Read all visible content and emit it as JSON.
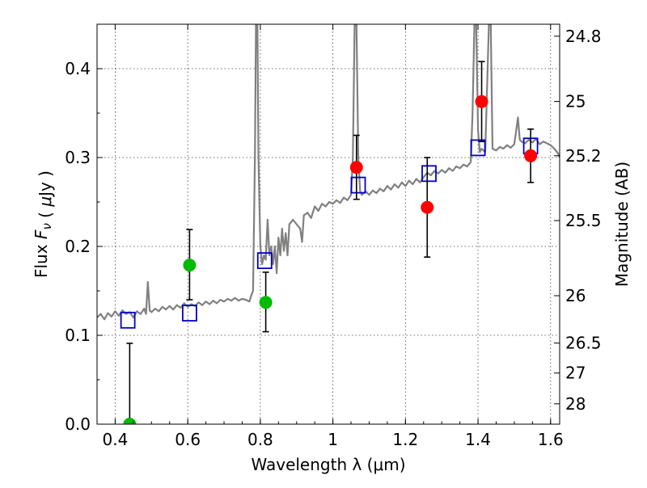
{
  "chart_data": {
    "type": "scatter",
    "xlabel": "Wavelength  λ (μm)",
    "ylabel": "Flux  F_ν  ( μJy )",
    "ylabel_right": "Magnitude (AB)",
    "xlim": [
      0.35,
      1.625
    ],
    "ylim": [
      0.0,
      0.45
    ],
    "grid": true,
    "x_ticks": [
      {
        "value": 0.4,
        "label": "0.4"
      },
      {
        "value": 0.6,
        "label": "0.6"
      },
      {
        "value": 0.8,
        "label": "0.8"
      },
      {
        "value": 1.0,
        "label": "1"
      },
      {
        "value": 1.2,
        "label": "1.2"
      },
      {
        "value": 1.4,
        "label": "1.4"
      },
      {
        "value": 1.6,
        "label": "1.6"
      }
    ],
    "y_ticks": [
      {
        "value": 0.0,
        "label": "0.0"
      },
      {
        "value": 0.1,
        "label": "0.1"
      },
      {
        "value": 0.2,
        "label": "0.2"
      },
      {
        "value": 0.3,
        "label": "0.3"
      },
      {
        "value": 0.4,
        "label": "0.4"
      }
    ],
    "mag_ticks": [
      {
        "value": 24.8,
        "label": "24.8"
      },
      {
        "value": 25.0,
        "label": "25"
      },
      {
        "value": 25.2,
        "label": "25.2"
      },
      {
        "value": 25.5,
        "label": "25.5"
      },
      {
        "value": 26.0,
        "label": "26"
      },
      {
        "value": 26.5,
        "label": "26.5"
      },
      {
        "value": 27.0,
        "label": "27"
      },
      {
        "value": 28.0,
        "label": "28"
      }
    ],
    "series": [
      {
        "kind": "spectrum",
        "color": "#808080",
        "points": [
          [
            0.35,
            0.12
          ],
          [
            0.36,
            0.124
          ],
          [
            0.37,
            0.118
          ],
          [
            0.38,
            0.125
          ],
          [
            0.39,
            0.121
          ],
          [
            0.4,
            0.127
          ],
          [
            0.41,
            0.122
          ],
          [
            0.42,
            0.128
          ],
          [
            0.43,
            0.124
          ],
          [
            0.44,
            0.126
          ],
          [
            0.45,
            0.12
          ],
          [
            0.46,
            0.127
          ],
          [
            0.47,
            0.124
          ],
          [
            0.48,
            0.13
          ],
          [
            0.485,
            0.124
          ],
          [
            0.49,
            0.16
          ],
          [
            0.495,
            0.128
          ],
          [
            0.5,
            0.126
          ],
          [
            0.51,
            0.13
          ],
          [
            0.52,
            0.127
          ],
          [
            0.53,
            0.132
          ],
          [
            0.54,
            0.129
          ],
          [
            0.55,
            0.133
          ],
          [
            0.56,
            0.129
          ],
          [
            0.57,
            0.134
          ],
          [
            0.58,
            0.131
          ],
          [
            0.59,
            0.136
          ],
          [
            0.6,
            0.132
          ],
          [
            0.61,
            0.135
          ],
          [
            0.62,
            0.133
          ],
          [
            0.63,
            0.137
          ],
          [
            0.64,
            0.134
          ],
          [
            0.65,
            0.138
          ],
          [
            0.66,
            0.135
          ],
          [
            0.67,
            0.139
          ],
          [
            0.68,
            0.136
          ],
          [
            0.69,
            0.14
          ],
          [
            0.7,
            0.138
          ],
          [
            0.71,
            0.141
          ],
          [
            0.72,
            0.139
          ],
          [
            0.73,
            0.142
          ],
          [
            0.74,
            0.139
          ],
          [
            0.75,
            0.141
          ],
          [
            0.76,
            0.14
          ],
          [
            0.77,
            0.138
          ],
          [
            0.775,
            0.145
          ],
          [
            0.78,
            0.15
          ],
          [
            0.785,
            0.3
          ],
          [
            0.788,
            0.45
          ],
          [
            0.792,
            0.45
          ],
          [
            0.795,
            0.3
          ],
          [
            0.8,
            0.2
          ],
          [
            0.805,
            0.18
          ],
          [
            0.81,
            0.19
          ],
          [
            0.815,
            0.185
          ],
          [
            0.82,
            0.23
          ],
          [
            0.825,
            0.19
          ],
          [
            0.83,
            0.2
          ],
          [
            0.835,
            0.18
          ],
          [
            0.84,
            0.2
          ],
          [
            0.845,
            0.17
          ],
          [
            0.85,
            0.21
          ],
          [
            0.855,
            0.19
          ],
          [
            0.86,
            0.22
          ],
          [
            0.865,
            0.195
          ],
          [
            0.87,
            0.215
          ],
          [
            0.875,
            0.19
          ],
          [
            0.88,
            0.225
          ],
          [
            0.89,
            0.23
          ],
          [
            0.9,
            0.225
          ],
          [
            0.91,
            0.22
          ],
          [
            0.915,
            0.205
          ],
          [
            0.92,
            0.235
          ],
          [
            0.93,
            0.238
          ],
          [
            0.94,
            0.232
          ],
          [
            0.95,
            0.245
          ],
          [
            0.96,
            0.24
          ],
          [
            0.97,
            0.248
          ],
          [
            0.98,
            0.245
          ],
          [
            0.99,
            0.25
          ],
          [
            1.0,
            0.248
          ],
          [
            1.01,
            0.252
          ],
          [
            1.02,
            0.249
          ],
          [
            1.03,
            0.255
          ],
          [
            1.04,
            0.252
          ],
          [
            1.05,
            0.258
          ],
          [
            1.055,
            0.3
          ],
          [
            1.06,
            0.45
          ],
          [
            1.065,
            0.45
          ],
          [
            1.07,
            0.3
          ],
          [
            1.075,
            0.262
          ],
          [
            1.08,
            0.258
          ],
          [
            1.09,
            0.262
          ],
          [
            1.1,
            0.258
          ],
          [
            1.11,
            0.263
          ],
          [
            1.12,
            0.26
          ],
          [
            1.13,
            0.265
          ],
          [
            1.14,
            0.262
          ],
          [
            1.15,
            0.268
          ],
          [
            1.16,
            0.264
          ],
          [
            1.17,
            0.27
          ],
          [
            1.18,
            0.266
          ],
          [
            1.19,
            0.272
          ],
          [
            1.2,
            0.268
          ],
          [
            1.21,
            0.274
          ],
          [
            1.22,
            0.27
          ],
          [
            1.23,
            0.276
          ],
          [
            1.24,
            0.272
          ],
          [
            1.25,
            0.278
          ],
          [
            1.26,
            0.283
          ],
          [
            1.27,
            0.28
          ],
          [
            1.28,
            0.285
          ],
          [
            1.29,
            0.282
          ],
          [
            1.3,
            0.286
          ],
          [
            1.31,
            0.283
          ],
          [
            1.32,
            0.288
          ],
          [
            1.33,
            0.285
          ],
          [
            1.34,
            0.29
          ],
          [
            1.35,
            0.288
          ],
          [
            1.36,
            0.292
          ],
          [
            1.37,
            0.29
          ],
          [
            1.38,
            0.295
          ],
          [
            1.385,
            0.35
          ],
          [
            1.39,
            0.45
          ],
          [
            1.395,
            0.45
          ],
          [
            1.4,
            0.33
          ],
          [
            1.405,
            0.306
          ],
          [
            1.41,
            0.31
          ],
          [
            1.42,
            0.306
          ],
          [
            1.43,
            0.45
          ],
          [
            1.435,
            0.45
          ],
          [
            1.44,
            0.31
          ],
          [
            1.45,
            0.308
          ],
          [
            1.46,
            0.312
          ],
          [
            1.47,
            0.31
          ],
          [
            1.48,
            0.314
          ],
          [
            1.49,
            0.311
          ],
          [
            1.5,
            0.315
          ],
          [
            1.505,
            0.33
          ],
          [
            1.51,
            0.345
          ],
          [
            1.515,
            0.32
          ],
          [
            1.52,
            0.318
          ],
          [
            1.53,
            0.316
          ],
          [
            1.54,
            0.32
          ],
          [
            1.55,
            0.317
          ],
          [
            1.56,
            0.321
          ],
          [
            1.57,
            0.315
          ],
          [
            1.58,
            0.318
          ],
          [
            1.59,
            0.316
          ],
          [
            1.6,
            0.314
          ],
          [
            1.61,
            0.31
          ],
          [
            1.62,
            0.305
          ],
          [
            1.625,
            0.3
          ]
        ]
      },
      {
        "kind": "model-photometry",
        "color": "#0000cc",
        "points": [
          [
            0.435,
            0.117
          ],
          [
            0.605,
            0.125
          ],
          [
            0.812,
            0.184
          ],
          [
            1.07,
            0.269
          ],
          [
            1.265,
            0.282
          ],
          [
            1.4,
            0.311
          ],
          [
            1.545,
            0.313
          ]
        ]
      },
      {
        "kind": "observed-optical",
        "color": "#00bb00",
        "points": [
          {
            "x": 0.44,
            "y": 0.0,
            "err": [
              0.0,
              0.091
            ]
          },
          {
            "x": 0.605,
            "y": 0.179,
            "err": [
              0.14,
              0.219
            ]
          },
          {
            "x": 0.815,
            "y": 0.137,
            "err": [
              0.104,
              0.171
            ]
          }
        ]
      },
      {
        "kind": "observed-nir",
        "color": "#ff0000",
        "points": [
          {
            "x": 1.065,
            "y": 0.289,
            "err": [
              0.253,
              0.325
            ]
          },
          {
            "x": 1.26,
            "y": 0.244,
            "err": [
              0.188,
              0.3
            ]
          },
          {
            "x": 1.41,
            "y": 0.363,
            "err": [
              0.318,
              0.408
            ]
          },
          {
            "x": 1.545,
            "y": 0.302,
            "err": [
              0.272,
              0.332
            ]
          }
        ]
      }
    ]
  }
}
